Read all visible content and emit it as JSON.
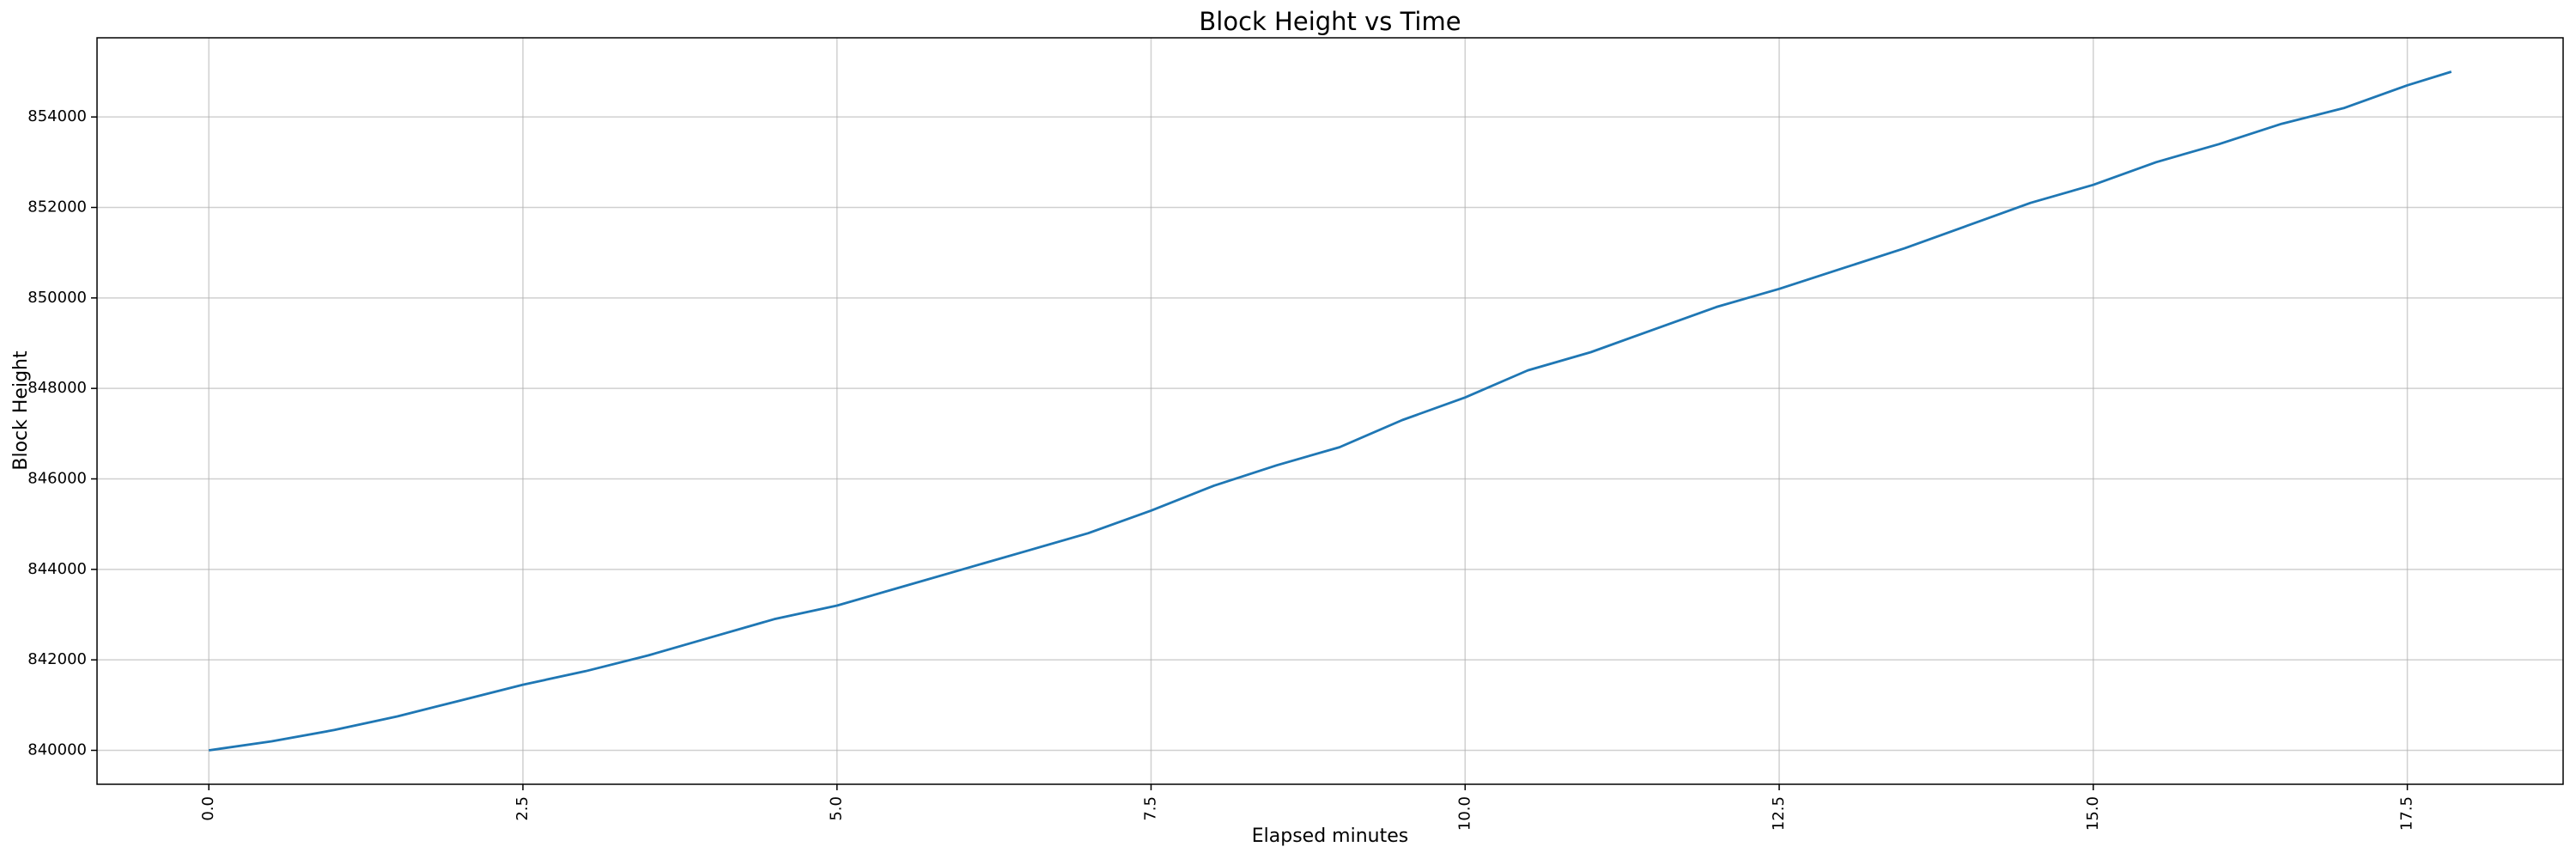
{
  "chart_data": {
    "type": "line",
    "title": "Block Height vs Time",
    "x_label": "Elapsed minutes",
    "y_label": "Block Height",
    "x": [
      0,
      0.5,
      1,
      1.5,
      2,
      2.5,
      3,
      3.5,
      4,
      4.5,
      5,
      5.5,
      6,
      6.5,
      7,
      7.5,
      8,
      8.5,
      9,
      9.5,
      10,
      10.5,
      11,
      11.5,
      12,
      12.5,
      13,
      13.5,
      14,
      14.5,
      15,
      15.5,
      16,
      16.5,
      17,
      17.5,
      17.85
    ],
    "series": [
      {
        "name": "Block Height",
        "color": "#1f77b4",
        "values": [
          840000,
          840200,
          840450,
          840750,
          841100,
          841450,
          841750,
          842100,
          842500,
          842900,
          843200,
          843600,
          844000,
          844400,
          844800,
          845300,
          845850,
          846300,
          846700,
          847300,
          847800,
          848400,
          848800,
          849300,
          849800,
          850200,
          850650,
          851100,
          851600,
          852100,
          852500,
          853000,
          853400,
          853850,
          854200,
          854700,
          855000
        ]
      }
    ],
    "xlim": [
      -0.89,
      18.74
    ],
    "ylim": [
      839250,
      855750
    ],
    "xticks": [
      {
        "value": 0,
        "label": "0.0"
      },
      2.5,
      {
        "value": 5,
        "label": "5.0"
      },
      7.5,
      {
        "value": 10,
        "label": "10.0"
      },
      12.5,
      {
        "value": 15,
        "label": "15.0"
      },
      17.5
    ],
    "yticks": [
      840000,
      842000,
      844000,
      846000,
      848000,
      850000,
      852000,
      854000
    ],
    "grid": true
  }
}
